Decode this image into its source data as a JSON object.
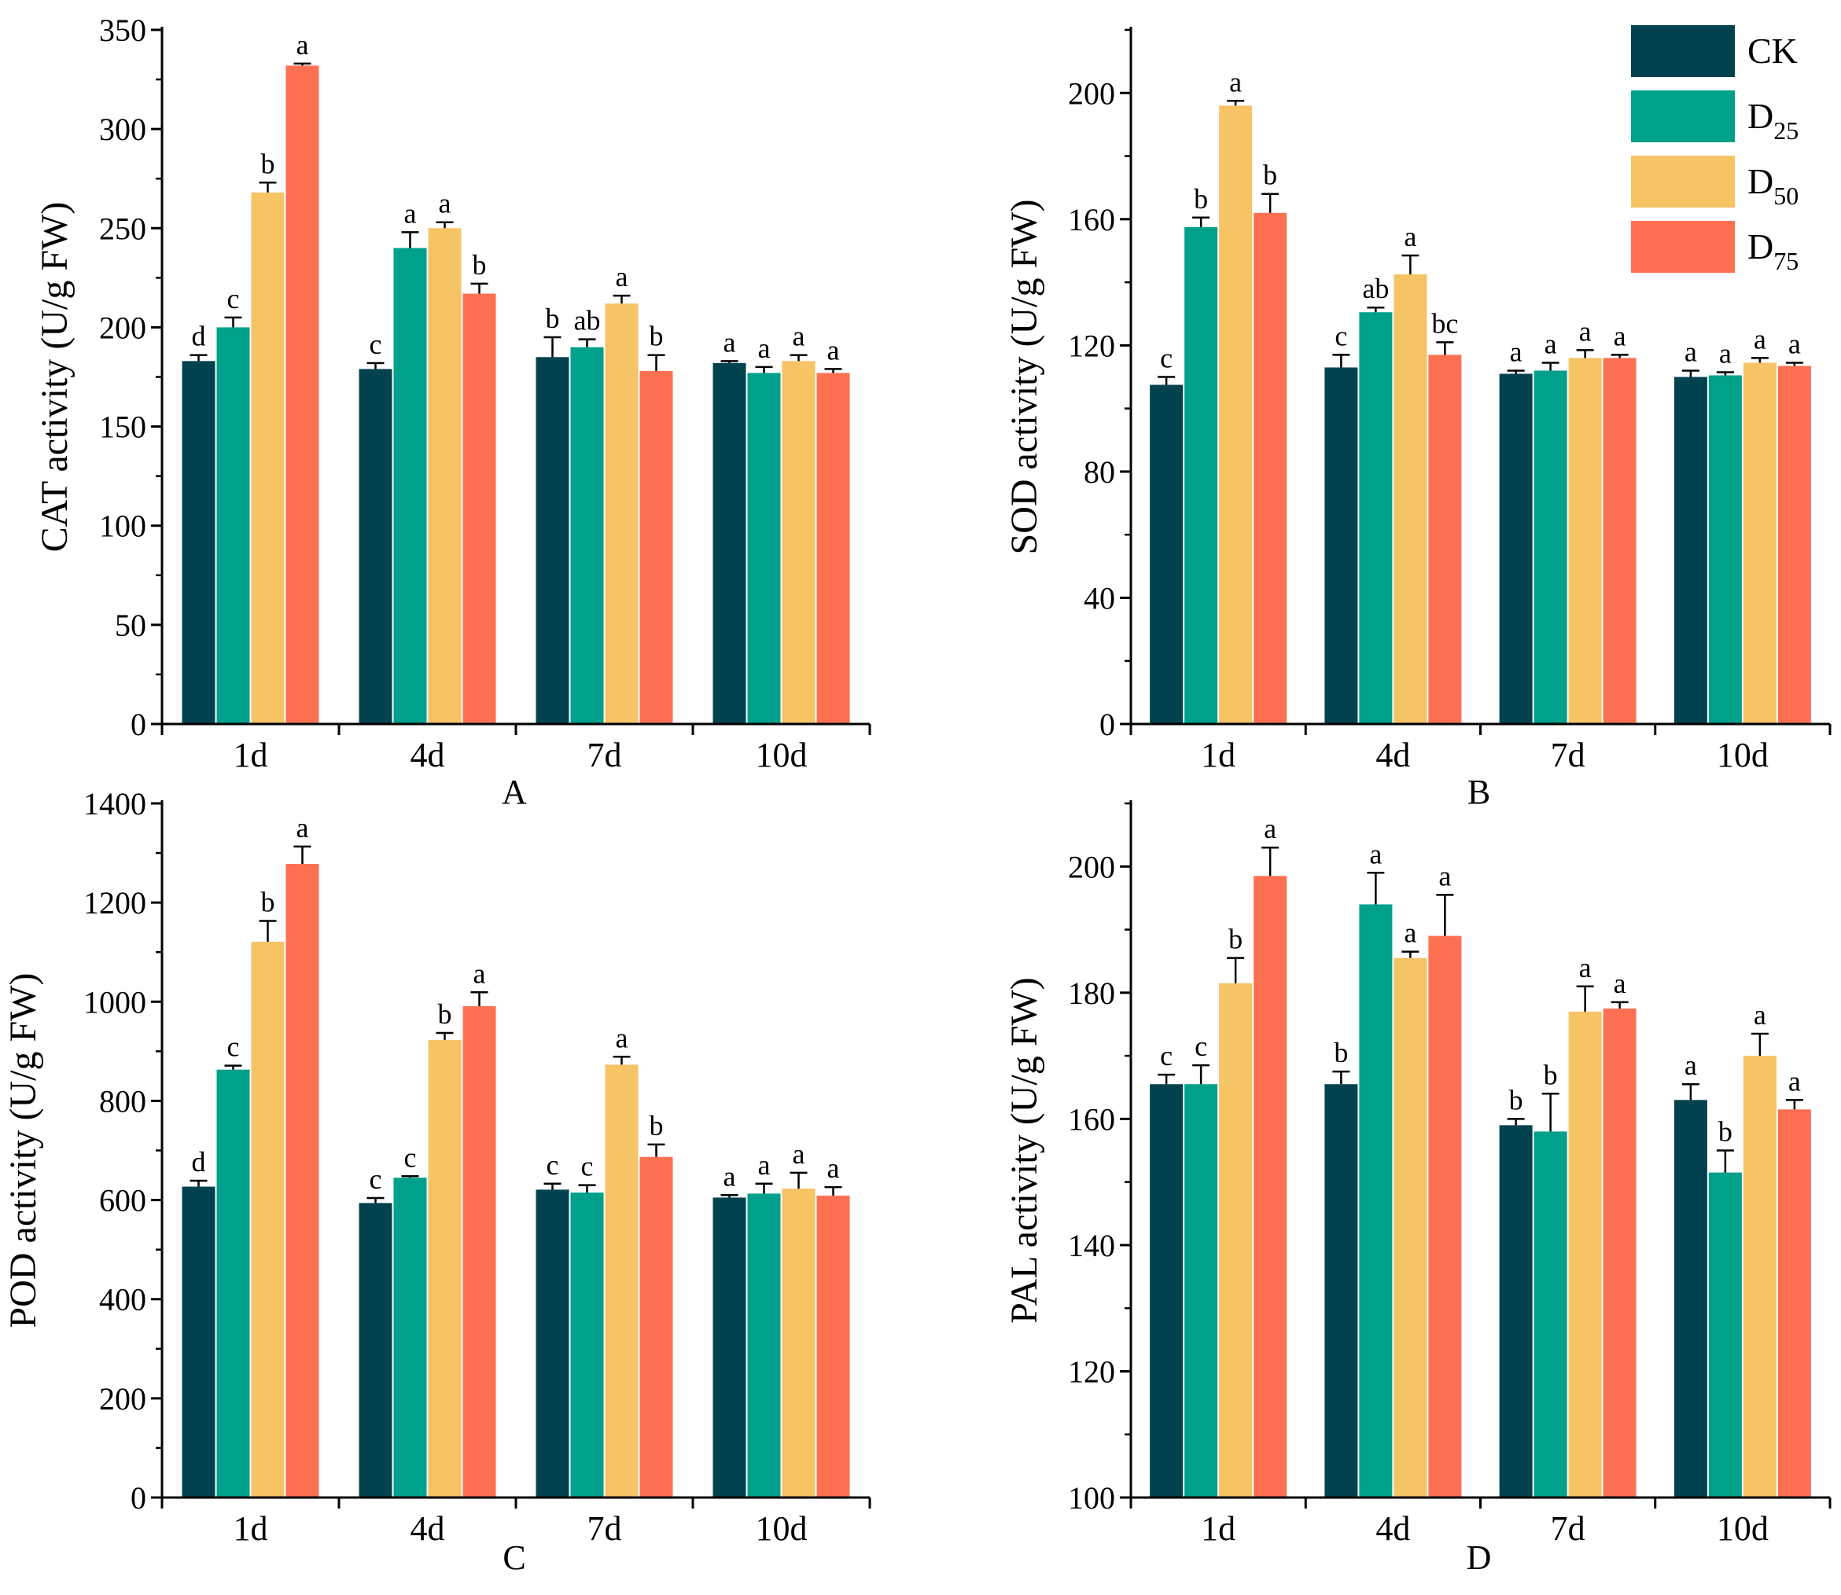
{
  "legend": [
    {
      "base": "CK",
      "sub": "",
      "color": "#02424f"
    },
    {
      "base": "D",
      "sub": "25",
      "color": "#00a08b"
    },
    {
      "base": "D",
      "sub": "50",
      "color": "#f6c365"
    },
    {
      "base": "D",
      "sub": "75",
      "color": "#fe7052"
    }
  ],
  "chart_data": [
    {
      "type": "bar",
      "panel": "A",
      "ylabel": "CAT activity (U/g FW)",
      "categories": [
        "1d",
        "4d",
        "7d",
        "10d"
      ],
      "ylim": [
        0,
        350
      ],
      "yticks": [
        0,
        50,
        100,
        150,
        200,
        250,
        300,
        350
      ],
      "series": [
        {
          "name": "CK",
          "values": [
            183,
            179,
            185,
            182
          ],
          "errors": [
            3,
            3,
            10,
            1
          ],
          "letters": [
            "d",
            "c",
            "b",
            "a"
          ]
        },
        {
          "name": "D25",
          "values": [
            200,
            240,
            190,
            177
          ],
          "errors": [
            5,
            8,
            4,
            3
          ],
          "letters": [
            "c",
            "a",
            "ab",
            "a"
          ]
        },
        {
          "name": "D50",
          "values": [
            268,
            250,
            212,
            183
          ],
          "errors": [
            5,
            3,
            4,
            3
          ],
          "letters": [
            "b",
            "a",
            "a",
            "a"
          ]
        },
        {
          "name": "D75",
          "values": [
            332,
            217,
            178,
            177
          ],
          "errors": [
            1,
            5,
            8,
            2
          ],
          "letters": [
            "a",
            "b",
            "b",
            "a"
          ]
        }
      ]
    },
    {
      "type": "bar",
      "panel": "B",
      "ylabel": "SOD activity (U/g FW)",
      "categories": [
        "1d",
        "4d",
        "7d",
        "10d"
      ],
      "ylim": [
        0,
        220
      ],
      "yticks": [
        0,
        40,
        80,
        120,
        160,
        200
      ],
      "series": [
        {
          "name": "CK",
          "values": [
            107.5,
            113,
            111,
            110
          ],
          "errors": [
            2.5,
            4,
            1,
            2
          ],
          "letters": [
            "c",
            "c",
            "a",
            "a"
          ]
        },
        {
          "name": "D25",
          "values": [
            157.5,
            130.5,
            112,
            110.5
          ],
          "errors": [
            3,
            1.5,
            2.5,
            1
          ],
          "letters": [
            "b",
            "ab",
            "a",
            "a"
          ]
        },
        {
          "name": "D50",
          "values": [
            196,
            142.5,
            116,
            114.5
          ],
          "errors": [
            1.5,
            6,
            2.5,
            1.5
          ],
          "letters": [
            "a",
            "a",
            "a",
            "a"
          ]
        },
        {
          "name": "D75",
          "values": [
            162,
            117,
            116,
            113.5
          ],
          "errors": [
            6,
            4,
            1,
            1
          ],
          "letters": [
            "b",
            "bc",
            "a",
            "a"
          ]
        }
      ]
    },
    {
      "type": "bar",
      "panel": "C",
      "ylabel": "POD activity (U/g FW)",
      "categories": [
        "1d",
        "4d",
        "7d",
        "10d"
      ],
      "ylim": [
        0,
        1400
      ],
      "yticks": [
        0,
        200,
        400,
        600,
        800,
        1000,
        1200,
        1400
      ],
      "series": [
        {
          "name": "CK",
          "values": [
            627,
            594,
            621,
            605
          ],
          "errors": [
            12,
            10,
            12,
            5
          ],
          "letters": [
            "d",
            "c",
            "c",
            "a"
          ]
        },
        {
          "name": "D25",
          "values": [
            863,
            645,
            615,
            613
          ],
          "errors": [
            8,
            3,
            15,
            20
          ],
          "letters": [
            "c",
            "c",
            "c",
            "a"
          ]
        },
        {
          "name": "D50",
          "values": [
            1121,
            923,
            873,
            623
          ],
          "errors": [
            42,
            14,
            16,
            32
          ],
          "letters": [
            "b",
            "b",
            "a",
            "a"
          ]
        },
        {
          "name": "D75",
          "values": [
            1278,
            991,
            687,
            609
          ],
          "errors": [
            35,
            28,
            25,
            17
          ],
          "letters": [
            "a",
            "a",
            "b",
            "a"
          ]
        }
      ]
    },
    {
      "type": "bar",
      "panel": "D",
      "ylabel": "PAL activity (U/g FW)",
      "categories": [
        "1d",
        "4d",
        "7d",
        "10d"
      ],
      "ylim": [
        100,
        210
      ],
      "yticks": [
        100,
        120,
        140,
        160,
        180,
        200
      ],
      "series": [
        {
          "name": "CK",
          "values": [
            165.5,
            165.5,
            159,
            163
          ],
          "errors": [
            1.5,
            2,
            1,
            2.5
          ],
          "letters": [
            "c",
            "b",
            "b",
            "a"
          ]
        },
        {
          "name": "D25",
          "values": [
            165.5,
            194,
            158,
            151.5
          ],
          "errors": [
            3,
            5,
            6,
            3.5
          ],
          "letters": [
            "c",
            "a",
            "b",
            "b"
          ]
        },
        {
          "name": "D50",
          "values": [
            181.5,
            185.5,
            177,
            170
          ],
          "errors": [
            4,
            1,
            4,
            3.5
          ],
          "letters": [
            "b",
            "a",
            "a",
            "a"
          ]
        },
        {
          "name": "D75",
          "values": [
            198.5,
            189,
            177.5,
            161.5
          ],
          "errors": [
            4.5,
            6.5,
            1,
            1.5
          ],
          "letters": [
            "a",
            "a",
            "a",
            "a"
          ]
        }
      ]
    }
  ]
}
